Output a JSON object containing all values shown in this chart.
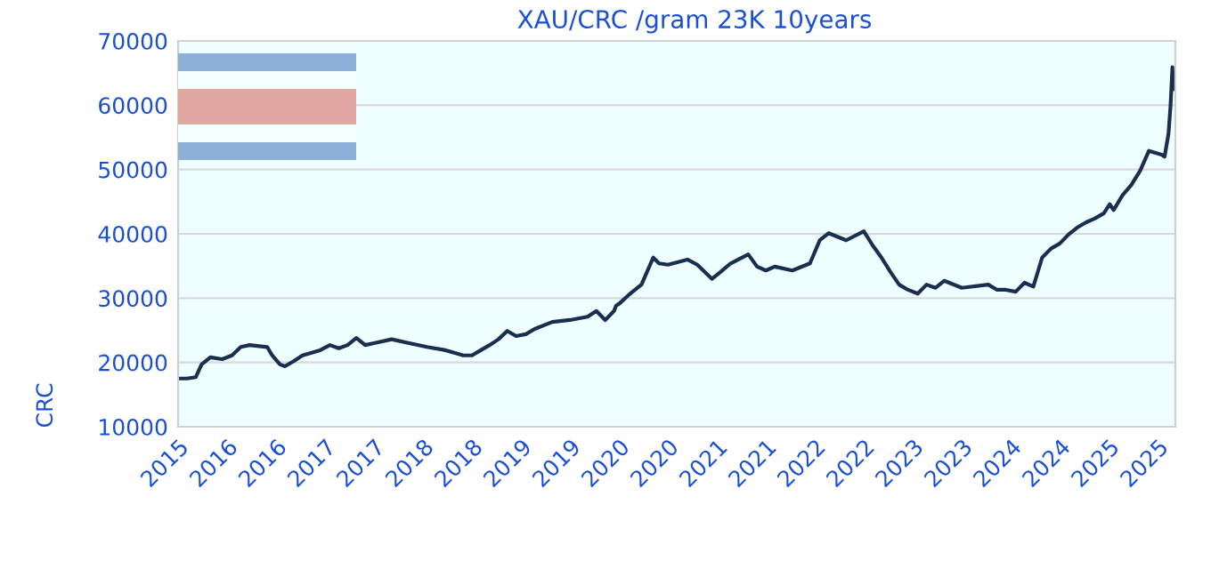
{
  "chart_data": {
    "type": "line",
    "title": "XAU/CRC /gram 23K 10years",
    "ylabel": "CRC",
    "x": [
      2015.4,
      2015.49,
      2015.58,
      2015.64,
      2015.73,
      2015.85,
      2015.95,
      2016.04,
      2016.13,
      2016.31,
      2016.36,
      2016.44,
      2016.49,
      2016.58,
      2016.67,
      2016.85,
      2016.95,
      2017.04,
      2017.13,
      2017.22,
      2017.31,
      2017.4,
      2017.58,
      2017.76,
      2017.94,
      2018.13,
      2018.31,
      2018.4,
      2018.49,
      2018.58,
      2018.67,
      2018.76,
      2018.85,
      2018.95,
      2019.04,
      2019.22,
      2019.4,
      2019.58,
      2019.67,
      2019.76,
      2019.85,
      2019.87,
      2019.9,
      2020.0,
      2020.13,
      2020.25,
      2020.31,
      2020.4,
      2020.6,
      2020.7,
      2020.85,
      2020.94,
      2021.04,
      2021.22,
      2021.31,
      2021.4,
      2021.49,
      2021.67,
      2021.85,
      2021.95,
      2022.04,
      2022.22,
      2022.4,
      2022.49,
      2022.58,
      2022.67,
      2022.76,
      2022.85,
      2022.95,
      2023.04,
      2023.13,
      2023.22,
      2023.4,
      2023.67,
      2023.76,
      2023.85,
      2023.95,
      2024.04,
      2024.13,
      2024.22,
      2024.31,
      2024.4,
      2024.49,
      2024.58,
      2024.67,
      2024.76,
      2024.85,
      2024.91,
      2024.95,
      2025.04,
      2025.13,
      2025.22,
      2025.31,
      2025.44,
      2025.47,
      2025.51,
      2025.53,
      2025.55,
      2025.56
    ],
    "values": [
      17500,
      17500,
      17700,
      19700,
      20800,
      20500,
      21100,
      22400,
      22700,
      22400,
      21100,
      19700,
      19400,
      20200,
      21100,
      21900,
      22700,
      22200,
      22700,
      23800,
      22700,
      23000,
      23600,
      23000,
      22400,
      21900,
      21100,
      21100,
      21900,
      22700,
      23600,
      24900,
      24100,
      24400,
      25200,
      26300,
      26600,
      27100,
      28000,
      26600,
      28000,
      28800,
      29100,
      30500,
      32100,
      36300,
      35400,
      35200,
      36000,
      35200,
      33000,
      34100,
      35400,
      36800,
      34900,
      34300,
      34900,
      34300,
      35400,
      39000,
      40100,
      39000,
      40400,
      38200,
      36300,
      34100,
      32100,
      31300,
      30700,
      32100,
      31600,
      32700,
      31600,
      32100,
      31300,
      31300,
      31000,
      32400,
      31800,
      36300,
      37700,
      38500,
      39900,
      41000,
      41800,
      42400,
      43200,
      44600,
      43700,
      46000,
      47600,
      49800,
      52900,
      52300,
      52000,
      55600,
      59800,
      65900,
      62500
    ],
    "color": "#1a2e50",
    "xlim": [
      2015.4,
      2025.58
    ],
    "xticks": [
      {
        "value": 2015.4,
        "label": "2015"
      },
      {
        "value": 2015.9,
        "label": "2016"
      },
      {
        "value": 2016.4,
        "label": "2016"
      },
      {
        "value": 2016.9,
        "label": "2017"
      },
      {
        "value": 2017.4,
        "label": "2017"
      },
      {
        "value": 2017.9,
        "label": "2018"
      },
      {
        "value": 2018.4,
        "label": "2018"
      },
      {
        "value": 2018.9,
        "label": "2019"
      },
      {
        "value": 2019.4,
        "label": "2019"
      },
      {
        "value": 2019.9,
        "label": "2020"
      },
      {
        "value": 2020.4,
        "label": "2020"
      },
      {
        "value": 2020.9,
        "label": "2021"
      },
      {
        "value": 2021.4,
        "label": "2021"
      },
      {
        "value": 2021.9,
        "label": "2022"
      },
      {
        "value": 2022.4,
        "label": "2022"
      },
      {
        "value": 2022.9,
        "label": "2023"
      },
      {
        "value": 2023.4,
        "label": "2023"
      },
      {
        "value": 2023.9,
        "label": "2024"
      },
      {
        "value": 2024.4,
        "label": "2024"
      },
      {
        "value": 2024.9,
        "label": "2025"
      },
      {
        "value": 2025.4,
        "label": "2025"
      }
    ],
    "ylim": [
      10000,
      70000
    ],
    "yticks": [
      10000,
      20000,
      30000,
      40000,
      50000,
      60000,
      70000
    ],
    "grid": "y"
  }
}
